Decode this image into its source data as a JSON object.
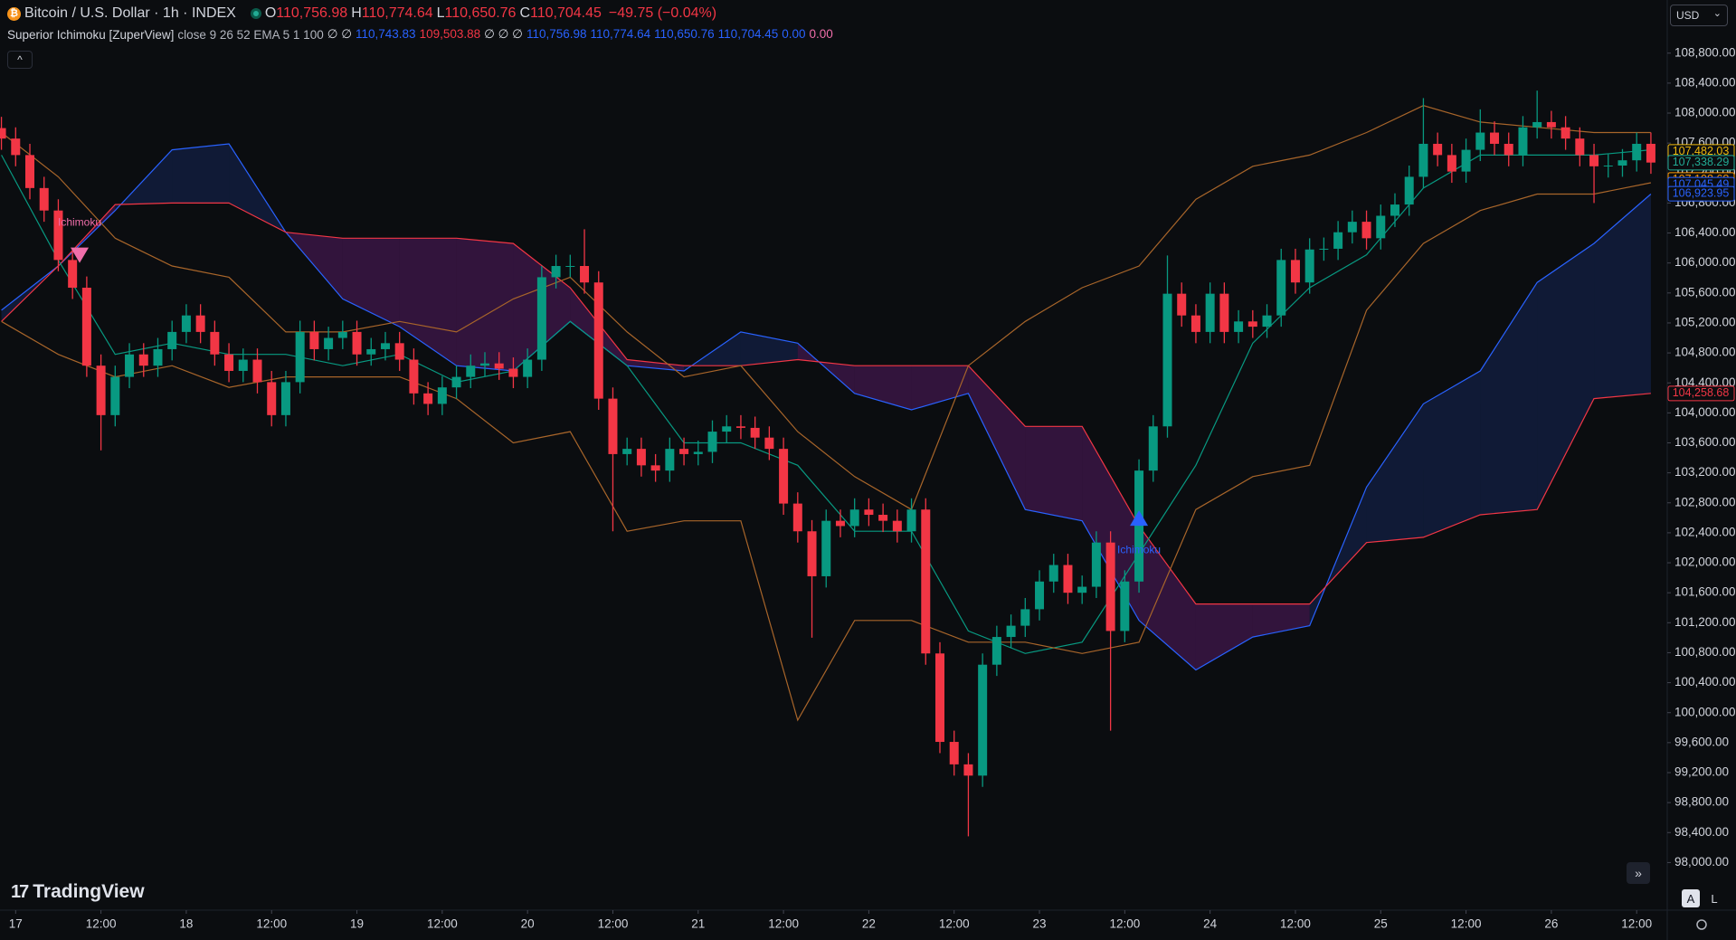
{
  "header": {
    "symbol": "Bitcoin / U.S. Dollar · 1h · INDEX",
    "ohlc": [
      {
        "key": "O",
        "value": "110,756.98"
      },
      {
        "key": "H",
        "value": "110,774.64"
      },
      {
        "key": "L",
        "value": "110,650.76"
      },
      {
        "key": "C",
        "value": "110,704.45"
      }
    ],
    "change": "−49.75 (−0.04%)",
    "indicator": {
      "name": "Superior Ichimoku [ZuperView]",
      "params": "close 9 26 52 EMA 5 1 100",
      "values": [
        {
          "text": "∅ ∅",
          "color": "#d1d4dc"
        },
        {
          "text": "110,743.83",
          "color": "#2962ff"
        },
        {
          "text": "109,503.88",
          "color": "#f23645"
        },
        {
          "text": "∅ ∅ ∅",
          "color": "#d1d4dc"
        },
        {
          "text": "110,756.98",
          "color": "#2962ff"
        },
        {
          "text": "110,774.64",
          "color": "#2962ff"
        },
        {
          "text": "110,650.76",
          "color": "#2962ff"
        },
        {
          "text": "110,704.45",
          "color": "#2962ff"
        },
        {
          "text": "0.00",
          "color": "#2962ff"
        },
        {
          "text": "0.00",
          "color": "#f06eaa"
        }
      ]
    },
    "currency": "USD"
  },
  "logo": "TradingView",
  "buttons": [
    "A",
    "L"
  ],
  "chart_data": {
    "type": "candlestick",
    "grid": false,
    "up_color": "#089981",
    "down_color": "#f23645",
    "xlim": [
      -2.2,
      232.3
    ],
    "ylim": [
      97365,
      109509
    ],
    "xticks": [
      {
        "value": 0,
        "label": "17"
      },
      {
        "value": 12,
        "label": "12:00"
      },
      {
        "value": 24,
        "label": "18"
      },
      {
        "value": 36,
        "label": "12:00"
      },
      {
        "value": 48,
        "label": "19"
      },
      {
        "value": 60,
        "label": "12:00"
      },
      {
        "value": 72,
        "label": "20"
      },
      {
        "value": 84,
        "label": "12:00"
      },
      {
        "value": 96,
        "label": "21"
      },
      {
        "value": 108,
        "label": "12:00"
      },
      {
        "value": 120,
        "label": "22"
      },
      {
        "value": 132,
        "label": "12:00"
      },
      {
        "value": 144,
        "label": "23"
      },
      {
        "value": 156,
        "label": "12:00"
      },
      {
        "value": 168,
        "label": "24"
      },
      {
        "value": 180,
        "label": "12:00"
      },
      {
        "value": 192,
        "label": "25"
      },
      {
        "value": 204,
        "label": "12:00"
      },
      {
        "value": 216,
        "label": "26"
      },
      {
        "value": 228,
        "label": "12:00"
      }
    ],
    "yticks": [
      {
        "value": 98000,
        "label": "98,000.00"
      },
      {
        "value": 98400,
        "label": "98,400.00"
      },
      {
        "value": 98800,
        "label": "98,800.00"
      },
      {
        "value": 99200,
        "label": "99,200.00"
      },
      {
        "value": 99600,
        "label": "99,600.00"
      },
      {
        "value": 100000,
        "label": "100,000.00"
      },
      {
        "value": 100400,
        "label": "100,400.00"
      },
      {
        "value": 100800,
        "label": "100,800.00"
      },
      {
        "value": 101200,
        "label": "101,200.00"
      },
      {
        "value": 101600,
        "label": "101,600.00"
      },
      {
        "value": 102000,
        "label": "102,000.00"
      },
      {
        "value": 102400,
        "label": "102,400.00"
      },
      {
        "value": 102800,
        "label": "102,800.00"
      },
      {
        "value": 103200,
        "label": "103,200.00"
      },
      {
        "value": 103600,
        "label": "103,600.00"
      },
      {
        "value": 104000,
        "label": "104,000.00"
      },
      {
        "value": 104400,
        "label": "104,400.00"
      },
      {
        "value": 104800,
        "label": "104,800.00"
      },
      {
        "value": 105200,
        "label": "105,200.00"
      },
      {
        "value": 105600,
        "label": "105,600.00"
      },
      {
        "value": 106000,
        "label": "106,000.00"
      },
      {
        "value": 106400,
        "label": "106,400.00"
      },
      {
        "value": 106800,
        "label": "106,800.00"
      },
      {
        "value": 107200,
        "label": "107,200.00"
      },
      {
        "value": 107600,
        "label": "107,600.00"
      },
      {
        "value": 108000,
        "label": "108,000.00"
      },
      {
        "value": 108400,
        "label": "108,400.00"
      },
      {
        "value": 108800,
        "label": "108,800.00"
      }
    ],
    "x": [
      -2,
      0,
      2,
      4,
      6,
      8,
      10,
      12,
      14,
      16,
      18,
      20,
      22,
      24,
      26,
      28,
      30,
      32,
      34,
      36,
      38,
      40,
      42,
      44,
      46,
      48,
      50,
      52,
      54,
      56,
      58,
      60,
      62,
      64,
      66,
      68,
      70,
      72,
      74,
      76,
      78,
      80,
      82,
      84,
      86,
      88,
      90,
      92,
      94,
      96,
      98,
      100,
      102,
      104,
      106,
      108,
      110,
      112,
      114,
      116,
      118,
      120,
      122,
      124,
      126,
      128,
      130,
      132,
      134,
      136,
      138,
      140,
      142,
      144,
      146,
      148,
      150,
      152,
      154,
      156,
      158,
      160,
      162,
      164,
      166,
      168,
      170,
      172,
      174,
      176,
      178,
      180,
      182,
      184,
      186,
      188,
      190,
      192,
      194,
      196,
      198,
      200,
      202,
      204,
      206,
      208,
      210,
      212,
      214,
      216,
      218,
      220,
      222,
      224,
      226,
      228,
      230
    ],
    "open": [
      107800,
      107660,
      107440,
      107000,
      106700,
      106040,
      105670,
      104630,
      103970,
      104480,
      104780,
      104630,
      104850,
      105080,
      105300,
      105080,
      104780,
      104560,
      104710,
      104410,
      103970,
      104410,
      105080,
      104850,
      105000,
      105080,
      104780,
      104850,
      104930,
      104710,
      104260,
      104120,
      104340,
      104480,
      104630,
      104660,
      104590,
      104480,
      104710,
      105810,
      105960,
      105960,
      105740,
      104190,
      103450,
      103520,
      103300,
      103230,
      103520,
      103450,
      103480,
      103750,
      103820,
      103800,
      103670,
      103520,
      102790,
      102420,
      101820,
      102560,
      102490,
      102710,
      102640,
      102560,
      102420,
      102710,
      100790,
      99610,
      99310,
      99160,
      100640,
      101010,
      101160,
      101380,
      101750,
      101970,
      101600,
      101680,
      102270,
      101090,
      101750,
      103230,
      103820,
      105590,
      105300,
      105080,
      105590,
      105080,
      105220,
      105150,
      105300,
      106040,
      105740,
      106180,
      106190,
      106410,
      106550,
      106330,
      106630,
      106780,
      107150,
      107590,
      107440,
      107220,
      107510,
      107740,
      107590,
      107440,
      107810,
      107880,
      107810,
      107660,
      107440,
      107290,
      107300,
      107370,
      107590
    ],
    "high": [
      107950,
      107810,
      107590,
      107150,
      106850,
      106190,
      105820,
      104780,
      104630,
      104930,
      104930,
      105000,
      105230,
      105450,
      105450,
      105230,
      104930,
      104860,
      104860,
      104560,
      104560,
      105230,
      105230,
      105150,
      105230,
      105230,
      105000,
      105080,
      105080,
      104860,
      104410,
      104490,
      104630,
      104780,
      104810,
      104810,
      104740,
      104860,
      105960,
      106110,
      106110,
      106450,
      105890,
      104340,
      103670,
      103670,
      103450,
      103670,
      103670,
      103630,
      103900,
      103970,
      103970,
      103950,
      103820,
      103670,
      102940,
      102570,
      102710,
      102710,
      102860,
      102860,
      102790,
      102710,
      102860,
      102860,
      100940,
      99760,
      99460,
      100790,
      101160,
      101310,
      101530,
      101900,
      102120,
      102120,
      101830,
      102420,
      102420,
      101900,
      103380,
      103970,
      106100,
      105740,
      105450,
      105740,
      105740,
      105370,
      105370,
      105450,
      106190,
      106190,
      106330,
      106340,
      106560,
      106700,
      106700,
      106780,
      106930,
      107300,
      108200,
      107740,
      107590,
      107660,
      108050,
      107890,
      107740,
      107960,
      108300,
      108030,
      107960,
      107810,
      107590,
      107450,
      107520,
      107740,
      107740
    ],
    "low": [
      107510,
      107290,
      106850,
      106550,
      105890,
      105520,
      104480,
      103500,
      103820,
      104330,
      104480,
      104480,
      104700,
      104930,
      104930,
      104630,
      104410,
      104410,
      104260,
      103820,
      103820,
      104260,
      104700,
      104700,
      104850,
      104630,
      104630,
      104700,
      104560,
      104110,
      103970,
      103970,
      104190,
      104330,
      104480,
      104440,
      104330,
      104330,
      104560,
      105660,
      105810,
      105590,
      104040,
      102420,
      103300,
      103150,
      103080,
      103080,
      103300,
      103300,
      103330,
      103600,
      103650,
      103520,
      103370,
      102640,
      102270,
      101000,
      101670,
      102340,
      102340,
      102490,
      102410,
      102270,
      102270,
      100640,
      99460,
      99160,
      98350,
      99010,
      100490,
      100860,
      101010,
      101230,
      101600,
      101450,
      101450,
      101530,
      99760,
      100940,
      101600,
      103080,
      103670,
      105150,
      104930,
      104930,
      104930,
      104930,
      105000,
      105000,
      105150,
      105590,
      105590,
      106030,
      106040,
      106260,
      106180,
      106180,
      106480,
      106630,
      107000,
      107290,
      107070,
      107070,
      107360,
      107440,
      107290,
      107290,
      107660,
      107660,
      107510,
      107290,
      106800,
      107140,
      107150,
      107220,
      107190
    ],
    "close": [
      107660,
      107440,
      107000,
      106700,
      106040,
      105670,
      104630,
      103970,
      104480,
      104780,
      104630,
      104850,
      105080,
      105300,
      105080,
      104780,
      104560,
      104710,
      104410,
      103970,
      104410,
      105080,
      104850,
      105000,
      105080,
      104780,
      104850,
      104930,
      104710,
      104260,
      104120,
      104340,
      104480,
      104630,
      104660,
      104590,
      104480,
      104710,
      105810,
      105960,
      105960,
      105740,
      104190,
      103450,
      103520,
      103300,
      103230,
      103520,
      103450,
      103480,
      103750,
      103820,
      103800,
      103670,
      103520,
      102790,
      102420,
      101820,
      102560,
      102490,
      102710,
      102640,
      102560,
      102420,
      102710,
      100790,
      99610,
      99310,
      99160,
      100640,
      101010,
      101160,
      101380,
      101750,
      101970,
      101600,
      101680,
      102270,
      101090,
      101750,
      103230,
      103820,
      105590,
      105300,
      105080,
      105590,
      105080,
      105220,
      105150,
      105300,
      106040,
      105740,
      106180,
      106190,
      106410,
      106550,
      106330,
      106630,
      106780,
      107150,
      107590,
      107440,
      107220,
      107510,
      107740,
      107590,
      107440,
      107810,
      107880,
      107810,
      107660,
      107440,
      107290,
      107300,
      107370,
      107590,
      107340
    ],
    "overlays": {
      "x": [
        -2,
        6,
        14,
        22,
        30,
        38,
        46,
        54,
        62,
        70,
        78,
        86,
        94,
        102,
        110,
        118,
        126,
        134,
        142,
        150,
        158,
        166,
        174,
        182,
        190,
        198,
        206,
        214,
        222,
        230
      ],
      "cloud": {
        "up_color": "rgba(41,98,255,0.16)",
        "down_color": "rgba(156,39,176,0.28)",
        "span_a_color": "#2962ff",
        "span_b_color": "#f23645",
        "span_a": [
          105370,
          105960,
          106700,
          107510,
          107590,
          106410,
          105520,
          105150,
          104630,
          104560,
          105220,
          104630,
          104560,
          105080,
          104930,
          104260,
          104040,
          104260,
          102710,
          102560,
          101230,
          100570,
          101010,
          101160,
          103010,
          104120,
          104560,
          105740,
          106260,
          106920
        ],
        "span_b": [
          105220,
          105960,
          106780,
          106800,
          106800,
          106410,
          106330,
          106330,
          106330,
          106260,
          105670,
          104710,
          104630,
          104630,
          104710,
          104630,
          104630,
          104630,
          103820,
          103820,
          102490,
          101450,
          101450,
          101450,
          102270,
          102340,
          102640,
          102710,
          104190,
          104260
        ]
      },
      "lines": [
        {
          "color": "#089981",
          "values": [
            107440,
            106040,
            104780,
            104930,
            104780,
            104780,
            104630,
            104780,
            104410,
            104560,
            105220,
            104630,
            103600,
            103600,
            103300,
            102420,
            102420,
            101090,
            100790,
            100940,
            102120,
            103300,
            104930,
            105670,
            106110,
            107000,
            107440,
            107440,
            107440,
            107510
          ]
        },
        {
          "color": "#a8652a",
          "values": [
            107740,
            107150,
            106330,
            105960,
            105810,
            105080,
            105080,
            105220,
            105080,
            105520,
            105810,
            105080,
            104480,
            104630,
            103750,
            103150,
            102710,
            104630,
            105220,
            105670,
            105960,
            106850,
            107290,
            107440,
            107740,
            108100,
            107880,
            107810,
            107740,
            107740
          ]
        },
        {
          "color": "#a8652a",
          "values": [
            105220,
            104780,
            104480,
            104630,
            104340,
            104480,
            104480,
            104480,
            104190,
            103600,
            103750,
            102420,
            102560,
            102560,
            99900,
            101230,
            101230,
            100940,
            100940,
            100790,
            100940,
            102710,
            103150,
            103300,
            105370,
            106260,
            106700,
            106920,
            106920,
            107070
          ]
        }
      ]
    },
    "markers": [
      {
        "x": 9,
        "y": 106110,
        "label": "Ichimoku",
        "shape": "down",
        "color": "#f06eaa"
      },
      {
        "x": 158,
        "y": 102590,
        "label": "Ichimoku",
        "shape": "up",
        "color": "#2962ff"
      }
    ],
    "price_tags": [
      {
        "value": 107482.03,
        "label": "107,482.03",
        "color": "#f0b90b"
      },
      {
        "value": 107338.29,
        "label": "107,338.29",
        "color": "#22ab94"
      },
      {
        "value": 107108.68,
        "label": "107,108.68",
        "color": "#ff9800"
      },
      {
        "value": 107045.49,
        "label": "107,045.49",
        "color": "#2962ff"
      },
      {
        "value": 106923.95,
        "label": "106,923.95",
        "color": "#2962ff"
      },
      {
        "value": 104258.68,
        "label": "104,258.68",
        "color": "#f23645"
      }
    ]
  }
}
